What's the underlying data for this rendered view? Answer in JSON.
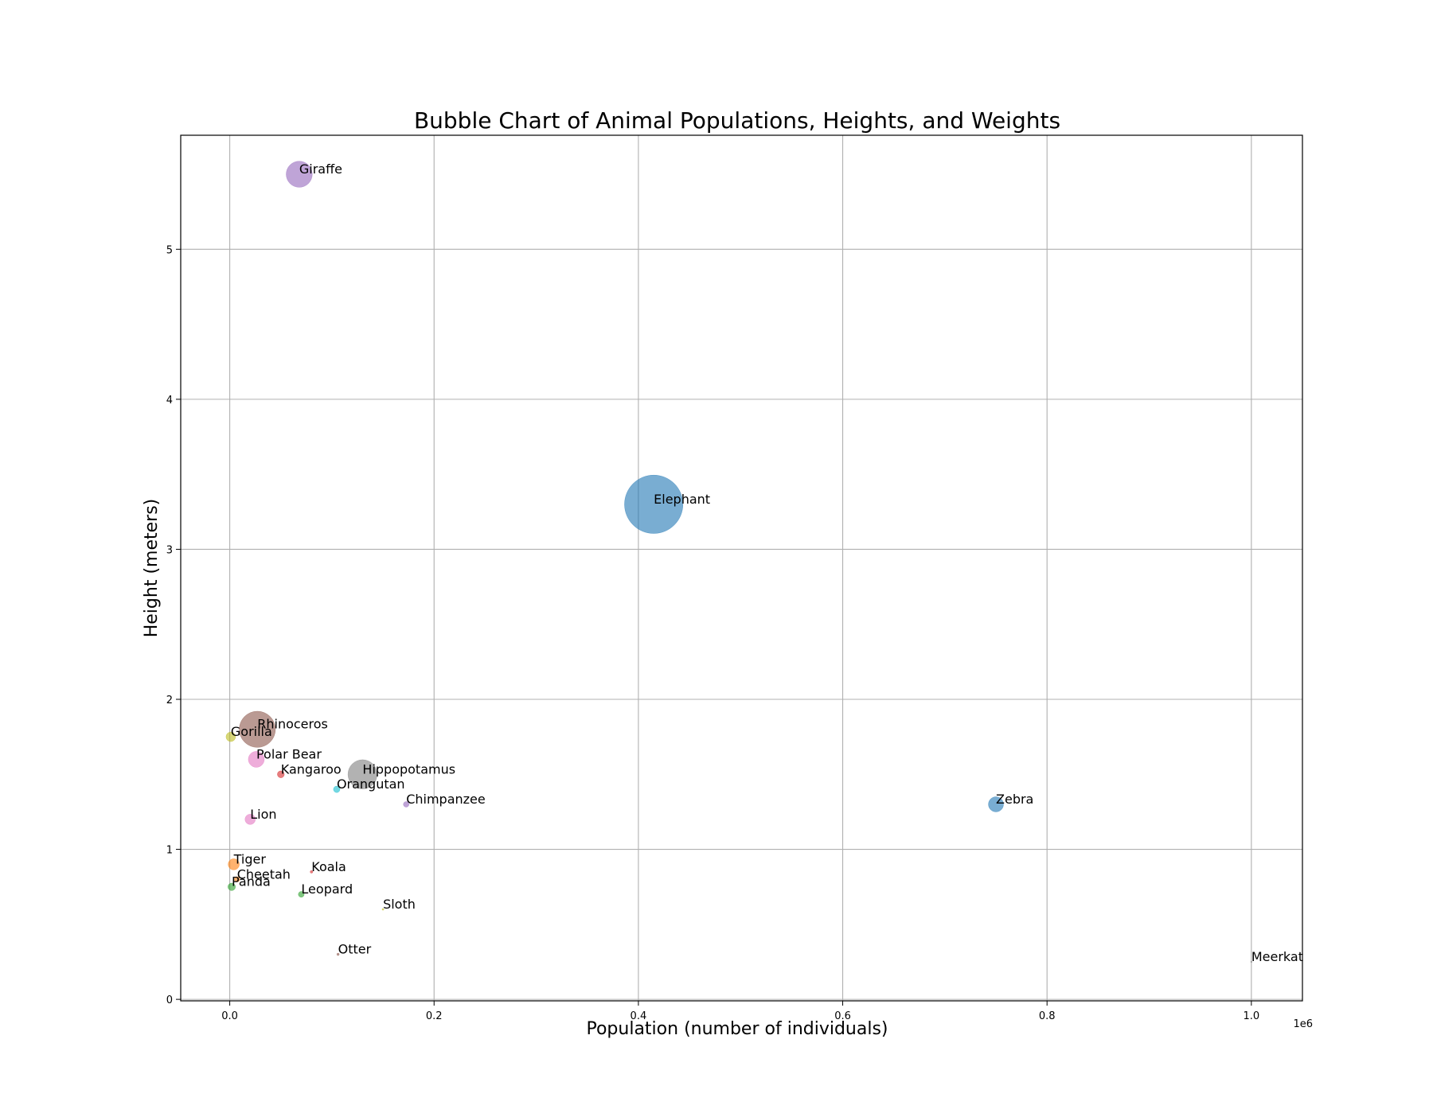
{
  "chart_data": {
    "type": "scatter",
    "title": "Bubble Chart of Animal Populations, Heights, and Weights",
    "xlabel": "Population (number of individuals)",
    "ylabel": "Height (meters)",
    "x_offset_label": "1e6",
    "xlim": [
      -48000,
      1050000
    ],
    "ylim": [
      -0.01,
      5.76
    ],
    "x_ticks": [
      0,
      200000,
      400000,
      600000,
      800000,
      1000000
    ],
    "x_tick_labels": [
      "0.0",
      "0.2",
      "0.4",
      "0.6",
      "0.8",
      "1.0"
    ],
    "y_ticks": [
      0,
      1,
      2,
      3,
      4,
      5
    ],
    "y_tick_labels": [
      "0",
      "1",
      "2",
      "3",
      "4",
      "5"
    ],
    "grid": true,
    "points": [
      {
        "label": "Elephant",
        "x": 415000,
        "y": 3.3,
        "weight": 6000,
        "color": "#1f77b4"
      },
      {
        "label": "Tiger",
        "x": 3900,
        "y": 0.9,
        "weight": 220,
        "color": "#ff7f0e"
      },
      {
        "label": "Leopard",
        "x": 70000,
        "y": 0.7,
        "weight": 60,
        "color": "#2ca02c"
      },
      {
        "label": "Kangaroo",
        "x": 50000,
        "y": 1.5,
        "weight": 85,
        "color": "#d62728"
      },
      {
        "label": "Giraffe",
        "x": 68000,
        "y": 5.5,
        "weight": 1200,
        "color": "#9467bd"
      },
      {
        "label": "Rhinoceros",
        "x": 27000,
        "y": 1.8,
        "weight": 2300,
        "color": "#8c564b"
      },
      {
        "label": "Lion",
        "x": 20000,
        "y": 1.2,
        "weight": 190,
        "color": "#e377c2"
      },
      {
        "label": "Hippopotamus",
        "x": 130000,
        "y": 1.5,
        "weight": 1500,
        "color": "#7f7f7f"
      },
      {
        "label": "Gorilla",
        "x": 1000,
        "y": 1.75,
        "weight": 160,
        "color": "#bcbd22"
      },
      {
        "label": "Orangutan",
        "x": 104700,
        "y": 1.4,
        "weight": 75,
        "color": "#17becf"
      },
      {
        "label": "Zebra",
        "x": 750000,
        "y": 1.3,
        "weight": 400,
        "color": "#1f77b4"
      },
      {
        "label": "Cheetah",
        "x": 7100,
        "y": 0.8,
        "weight": 50,
        "color": "#ff7f0e"
      },
      {
        "label": "Panda",
        "x": 1864,
        "y": 0.75,
        "weight": 100,
        "color": "#2ca02c"
      },
      {
        "label": "Koala",
        "x": 80000,
        "y": 0.85,
        "weight": 12,
        "color": "#d62728"
      },
      {
        "label": "Chimpanzee",
        "x": 172700,
        "y": 1.3,
        "weight": 55,
        "color": "#9467bd"
      },
      {
        "label": "Otter",
        "x": 106000,
        "y": 0.3,
        "weight": 10,
        "color": "#8c564b"
      },
      {
        "label": "Polar Bear",
        "x": 26000,
        "y": 1.6,
        "weight": 450,
        "color": "#e377c2"
      },
      {
        "label": "Meerkat",
        "x": 1000000,
        "y": 0.25,
        "weight": 1,
        "color": "#7f7f7f"
      },
      {
        "label": "Sloth",
        "x": 150000,
        "y": 0.6,
        "weight": 6,
        "color": "#bcbd22"
      }
    ]
  }
}
